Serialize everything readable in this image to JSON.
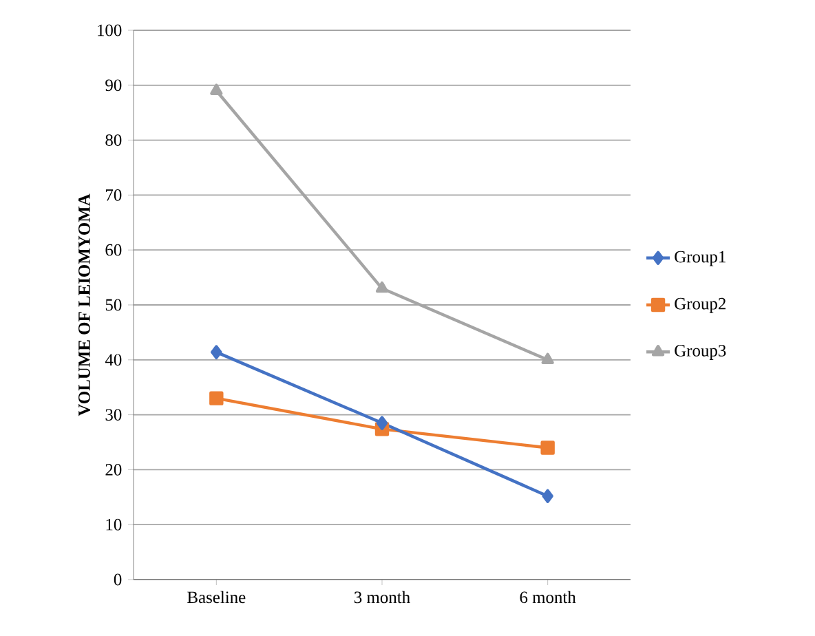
{
  "chart_data": {
    "type": "line",
    "ylabel": "VOLUME OF LEIOMYOMA",
    "categories": [
      "Baseline",
      "3 month",
      "6 month"
    ],
    "series": [
      {
        "name": "Group1",
        "color": "#4472c4",
        "marker": "diamond",
        "values": [
          41.4,
          28.5,
          15.2
        ]
      },
      {
        "name": "Group2",
        "color": "#ed7d31",
        "marker": "square",
        "values": [
          33,
          27.4,
          24
        ]
      },
      {
        "name": "Group3",
        "color": "#a5a5a5",
        "marker": "triangle",
        "values": [
          89,
          53,
          40
        ]
      }
    ],
    "ylim": [
      0,
      100
    ],
    "yticks": [
      0,
      10,
      20,
      30,
      40,
      50,
      60,
      70,
      80,
      90,
      100
    ],
    "grid": "y",
    "legend": "right"
  }
}
